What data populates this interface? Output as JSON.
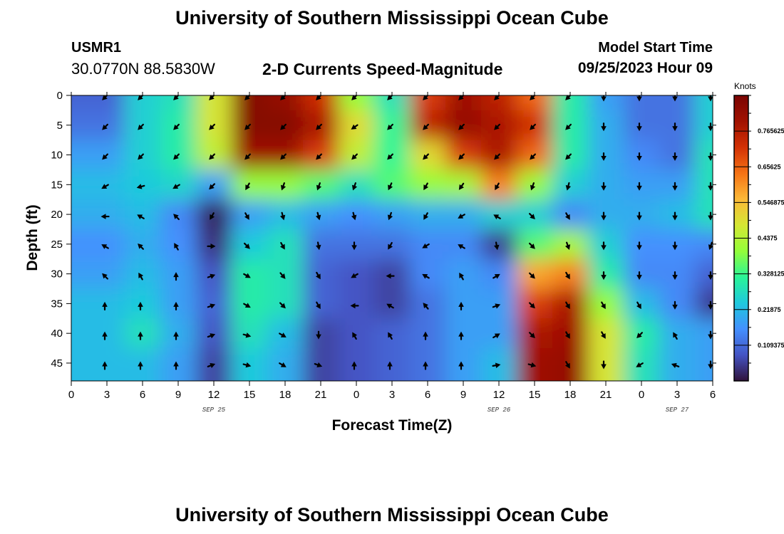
{
  "header": {
    "title": "University of Southern Mississippi Ocean Cube",
    "station_id": "USMR1",
    "station_coords": "30.0770N  88.5830W",
    "chart_heading": "2-D Currents Speed-Magnitude",
    "model_start_label": "Model Start Time",
    "model_start_value": "09/25/2023 Hour 09"
  },
  "footer": {
    "title": "University of Southern Mississippi Ocean Cube"
  },
  "chart_data": {
    "type": "heatmap",
    "title": "2-D Currents Speed-Magnitude",
    "xlabel": "Forecast Time(Z)",
    "ylabel": "Depth (ft)",
    "x_tick_labels": [
      "0",
      "3",
      "6",
      "9",
      "12",
      "15",
      "18",
      "21",
      "0",
      "3",
      "6",
      "9",
      "12",
      "15",
      "18",
      "21",
      "0",
      "3",
      "6"
    ],
    "x_hours": [
      0,
      3,
      6,
      9,
      12,
      15,
      18,
      21,
      24,
      27,
      30,
      33,
      36,
      39,
      42,
      45,
      48,
      51,
      54
    ],
    "xlim": [
      0,
      54
    ],
    "date_labels": [
      {
        "hour": 12,
        "text": "SEP 25"
      },
      {
        "hour": 36,
        "text": "SEP 26"
      },
      {
        "hour": 51,
        "text": "SEP 27"
      }
    ],
    "y_ticks": [
      0,
      5,
      10,
      15,
      20,
      25,
      30,
      35,
      40,
      45
    ],
    "ylim": [
      0,
      48
    ],
    "y_inverted": true,
    "colorbar": {
      "unit": "Knots",
      "tick_labels": [
        "0.109375",
        "0.21875",
        "0.328125",
        "0.4375",
        "0.546875",
        "0.65625",
        "0.765625"
      ],
      "range": [
        0,
        0.875
      ],
      "colormap": [
        "#30123b",
        "#4454c4",
        "#4490fe",
        "#1fc9dd",
        "#2af597",
        "#94fe3a",
        "#d5e734",
        "#fbb938",
        "#f67315",
        "#d23105",
        "#a11201",
        "#7a0403"
      ]
    },
    "grid_hours": [
      3,
      6,
      9,
      12,
      15,
      18,
      21,
      24,
      27,
      30,
      33,
      36,
      39,
      42,
      45,
      48,
      51,
      54
    ],
    "grid_depths": [
      0,
      5,
      10,
      15,
      20,
      25,
      30,
      35,
      40,
      45
    ],
    "speed": [
      [
        0.1,
        0.25,
        0.28,
        0.48,
        0.85,
        0.82,
        0.72,
        0.4,
        0.28,
        0.7,
        0.8,
        0.75,
        0.65,
        0.3,
        0.18,
        0.12,
        0.12,
        0.25
      ],
      [
        0.12,
        0.25,
        0.3,
        0.48,
        0.85,
        0.85,
        0.78,
        0.5,
        0.32,
        0.75,
        0.82,
        0.78,
        0.72,
        0.3,
        0.2,
        0.12,
        0.12,
        0.25
      ],
      [
        0.18,
        0.25,
        0.3,
        0.45,
        0.8,
        0.8,
        0.7,
        0.45,
        0.32,
        0.5,
        0.7,
        0.78,
        0.65,
        0.3,
        0.2,
        0.15,
        0.12,
        0.28
      ],
      [
        0.22,
        0.24,
        0.26,
        0.18,
        0.4,
        0.4,
        0.35,
        0.28,
        0.35,
        0.4,
        0.42,
        0.62,
        0.4,
        0.25,
        0.2,
        0.18,
        0.18,
        0.28
      ],
      [
        0.2,
        0.22,
        0.15,
        0.02,
        0.18,
        0.22,
        0.18,
        0.16,
        0.18,
        0.2,
        0.2,
        0.25,
        0.25,
        0.15,
        0.2,
        0.2,
        0.22,
        0.28
      ],
      [
        0.16,
        0.2,
        0.16,
        0.04,
        0.24,
        0.28,
        0.12,
        0.12,
        0.12,
        0.15,
        0.15,
        0.05,
        0.35,
        0.42,
        0.25,
        0.16,
        0.16,
        0.15
      ],
      [
        0.18,
        0.22,
        0.18,
        0.08,
        0.3,
        0.28,
        0.1,
        0.08,
        0.06,
        0.15,
        0.18,
        0.15,
        0.58,
        0.62,
        0.3,
        0.15,
        0.15,
        0.1
      ],
      [
        0.22,
        0.24,
        0.18,
        0.1,
        0.3,
        0.28,
        0.1,
        0.08,
        0.06,
        0.12,
        0.18,
        0.18,
        0.7,
        0.78,
        0.4,
        0.22,
        0.15,
        0.05
      ],
      [
        0.22,
        0.28,
        0.2,
        0.08,
        0.28,
        0.22,
        0.06,
        0.08,
        0.1,
        0.12,
        0.18,
        0.18,
        0.78,
        0.8,
        0.48,
        0.3,
        0.2,
        0.18
      ],
      [
        0.22,
        0.22,
        0.18,
        0.06,
        0.24,
        0.2,
        0.06,
        0.08,
        0.1,
        0.12,
        0.18,
        0.22,
        0.8,
        0.82,
        0.48,
        0.28,
        0.2,
        0.18
      ]
    ],
    "arrow_direction_deg": [
      [
        225,
        225,
        225,
        225,
        225,
        225,
        225,
        225,
        225,
        225,
        225,
        225,
        225,
        225,
        180,
        180,
        180,
        180
      ],
      [
        225,
        225,
        225,
        225,
        225,
        225,
        225,
        235,
        225,
        225,
        225,
        225,
        225,
        225,
        180,
        180,
        180,
        180
      ],
      [
        225,
        225,
        225,
        225,
        225,
        225,
        225,
        225,
        225,
        225,
        225,
        225,
        225,
        225,
        180,
        180,
        180,
        180
      ],
      [
        240,
        255,
        240,
        225,
        210,
        200,
        200,
        200,
        205,
        210,
        215,
        210,
        200,
        195,
        180,
        180,
        180,
        180
      ],
      [
        270,
        300,
        315,
        210,
        150,
        165,
        165,
        165,
        200,
        210,
        240,
        300,
        135,
        150,
        180,
        180,
        180,
        180
      ],
      [
        300,
        315,
        330,
        90,
        135,
        150,
        170,
        180,
        210,
        240,
        300,
        170,
        135,
        160,
        180,
        180,
        180,
        200
      ],
      [
        315,
        330,
        0,
        70,
        120,
        140,
        150,
        240,
        270,
        300,
        330,
        60,
        135,
        150,
        180,
        180,
        180,
        180
      ],
      [
        0,
        0,
        0,
        70,
        120,
        135,
        150,
        270,
        300,
        320,
        0,
        70,
        135,
        150,
        150,
        150,
        180,
        180
      ],
      [
        0,
        0,
        0,
        70,
        105,
        120,
        180,
        330,
        330,
        0,
        0,
        60,
        135,
        150,
        150,
        225,
        330,
        180
      ],
      [
        0,
        0,
        0,
        70,
        105,
        120,
        110,
        0,
        0,
        0,
        0,
        80,
        105,
        150,
        180,
        240,
        290,
        180
      ]
    ]
  }
}
